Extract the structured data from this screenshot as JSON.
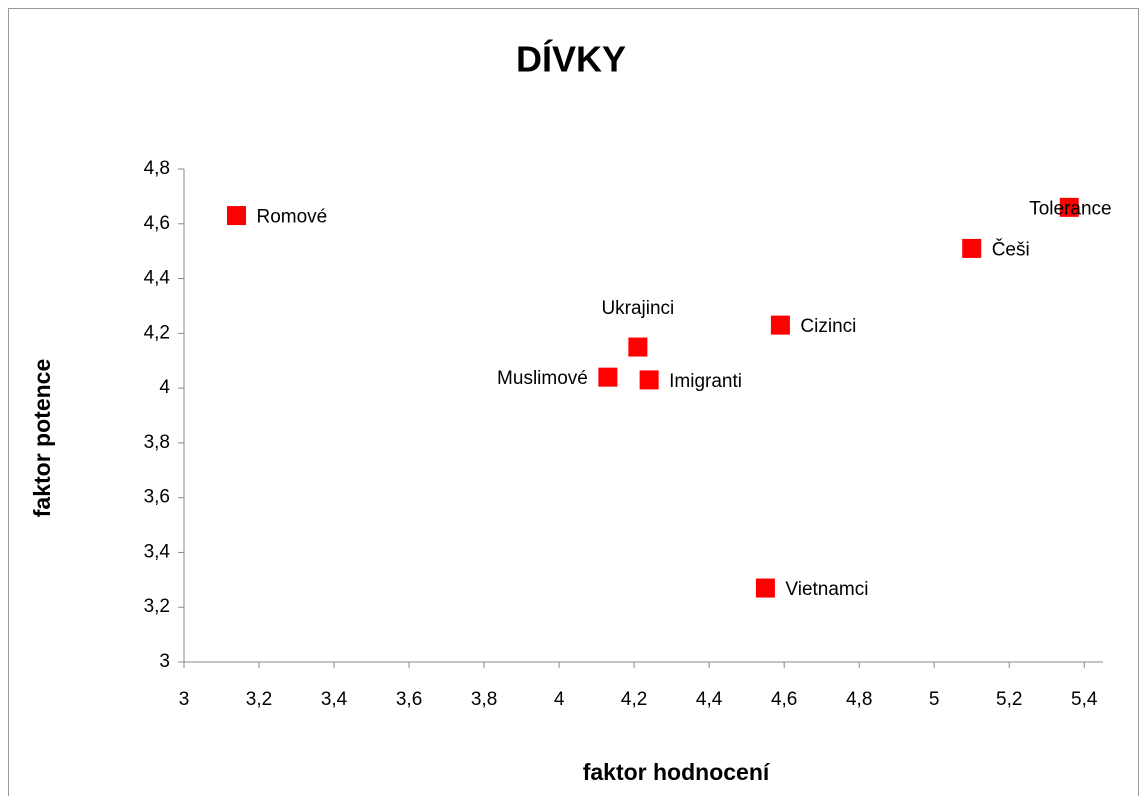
{
  "chart_data": {
    "type": "scatter",
    "title": "DÍVKY",
    "x_label": "faktor hodnocení",
    "y_label": "faktor potence",
    "color": "#ff0000",
    "labels": [
      "Romové",
      "Tolerance",
      "Češi",
      "Cizinci",
      "Ukrajinci",
      "Muslimové",
      "Imigranti",
      "Vietnamci"
    ],
    "x": [
      3.14,
      5.36,
      5.1,
      4.59,
      4.21,
      4.13,
      4.24,
      4.55
    ],
    "values": [
      4.63,
      4.66,
      4.51,
      4.23,
      4.15,
      4.04,
      4.03,
      3.27
    ],
    "xlim": [
      3,
      5.45
    ],
    "ylim": [
      3,
      4.8
    ],
    "xticks": [
      3,
      {
        "value": 3.2,
        "label": "3,2"
      },
      {
        "value": 3.4,
        "label": "3,4"
      },
      {
        "value": 3.6,
        "label": "3,6"
      },
      {
        "value": 3.8,
        "label": "3,8"
      },
      4,
      {
        "value": 4.2,
        "label": "4,2"
      },
      {
        "value": 4.4,
        "label": "4,4"
      },
      {
        "value": 4.6,
        "label": "4,6"
      },
      {
        "value": 4.8,
        "label": "4,8"
      },
      5,
      {
        "value": 5.2,
        "label": "5,2"
      },
      {
        "value": 5.4,
        "label": "5,4"
      }
    ],
    "yticks": [
      3,
      {
        "value": 3.2,
        "label": "3,2"
      },
      {
        "value": 3.4,
        "label": "3,4"
      },
      {
        "value": 3.6,
        "label": "3,6"
      },
      {
        "value": 3.8,
        "label": "3,8"
      },
      4,
      {
        "value": 4.2,
        "label": "4,2"
      },
      {
        "value": 4.4,
        "label": "4,4"
      },
      {
        "value": 4.6,
        "label": "4,6"
      },
      {
        "value": 4.8,
        "label": "4,8"
      }
    ],
    "grid": false
  }
}
